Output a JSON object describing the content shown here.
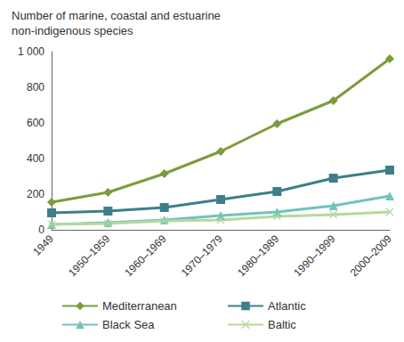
{
  "chart_data": {
    "type": "line",
    "title": "Number of marine, coastal and estuarine non-indigenous species",
    "categories": [
      "1949",
      "1950–1959",
      "1960–1969",
      "1970–1979",
      "1980–1989",
      "1990–1999",
      "2000–2009"
    ],
    "series": [
      {
        "name": "Mediterranean",
        "color": "#7d9b3d",
        "marker": "diamond",
        "values": [
          155,
          210,
          315,
          440,
          595,
          725,
          960
        ]
      },
      {
        "name": "Atlantic",
        "color": "#3e7f8a",
        "marker": "square",
        "values": [
          95,
          105,
          125,
          170,
          215,
          290,
          335
        ]
      },
      {
        "name": "Black Sea",
        "color": "#6fc3c0",
        "marker": "triangle",
        "values": [
          30,
          40,
          55,
          80,
          100,
          135,
          190
        ]
      },
      {
        "name": "Baltic",
        "color": "#b5d99c",
        "marker": "x",
        "values": [
          30,
          35,
          50,
          55,
          75,
          85,
          100
        ]
      }
    ],
    "ylim": [
      0,
      1000
    ],
    "yticks": [
      0,
      200,
      400,
      600,
      800,
      {
        "value": 1000,
        "label": "1 000"
      }
    ],
    "grid": false,
    "legend": "bottom"
  }
}
